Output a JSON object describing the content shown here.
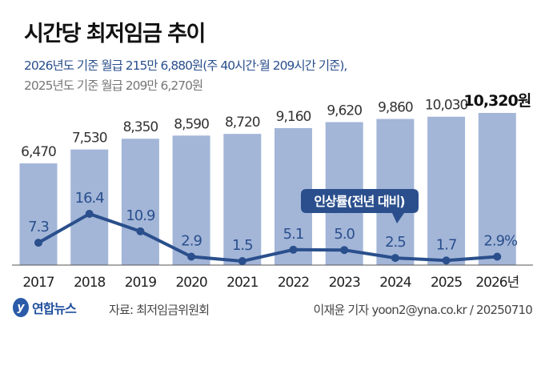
{
  "header": {
    "title": "시간당 최저임금 추이",
    "subtitle_2026": "2026년도 기준 월급 215만 6,880원(주 40시간·월 209시간 기준),",
    "subtitle_2025": "2025년도 기준 월급 209만 6,270원"
  },
  "chart_data": {
    "type": "bar+line",
    "categories": [
      "2017",
      "2018",
      "2019",
      "2020",
      "2021",
      "2022",
      "2023",
      "2024",
      "2025",
      "2026년"
    ],
    "series": [
      {
        "name": "시간당 최저임금(원)",
        "type": "bar",
        "values": [
          6470,
          7530,
          8350,
          8590,
          8720,
          9160,
          9620,
          9860,
          10030,
          10320
        ],
        "labels": [
          "6,470",
          "7,530",
          "8,350",
          "8,590",
          "8,720",
          "9,160",
          "9,620",
          "9,860",
          "10,030",
          "10,320원"
        ]
      },
      {
        "name": "인상률(전년 대비)",
        "type": "line",
        "values": [
          7.3,
          16.4,
          10.9,
          2.9,
          1.5,
          5.1,
          5.0,
          2.5,
          1.7,
          2.9
        ],
        "labels": [
          "7.3",
          "16.4",
          "10.9",
          "2.9",
          "1.5",
          "5.1",
          "5.0",
          "2.5",
          "1.7",
          "2.9%"
        ]
      }
    ],
    "callout": "인상률(전년 대비)",
    "colors": {
      "bar": "#a3b6d8",
      "line": "#2a4f8c",
      "callout": "#2a4f8c"
    }
  },
  "footer": {
    "logo": "연합뉴스",
    "source": "자료: 최저임금위원회",
    "credit": "이재윤 기자 yoon2@yna.co.kr / 20250710"
  }
}
